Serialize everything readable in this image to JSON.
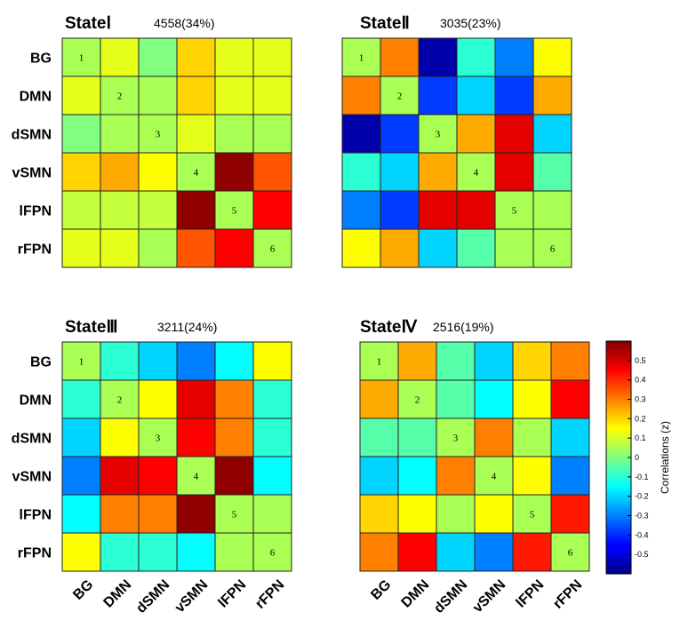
{
  "chart_data": {
    "type": "heatmap",
    "regions": [
      "BG",
      "DMN",
      "dSMN",
      "vSMN",
      "lFPN",
      "rFPN"
    ],
    "diagonal_labels": [
      "1",
      "2",
      "3",
      "4",
      "5",
      "6"
    ],
    "colorbar": {
      "label": "Correlations (z)",
      "min": -0.6,
      "max": 0.6,
      "tick_values": [
        0.5,
        0.4,
        0.3,
        0.2,
        0.1,
        0,
        -0.1,
        -0.2,
        -0.3,
        -0.4,
        -0.5
      ],
      "tick_labels": [
        "0.5",
        "0.4",
        "0.3",
        "0.2",
        "0.1",
        "0",
        "-0.1",
        "-0.2",
        "-0.3",
        "-0.4",
        "-0.5"
      ]
    },
    "states": [
      {
        "title": "StateⅠ",
        "count": "4558(34%)",
        "matrix": [
          [
            0.05,
            0.12,
            0.0,
            0.2,
            0.12,
            0.12
          ],
          [
            0.12,
            0.05,
            0.05,
            0.2,
            0.12,
            0.12
          ],
          [
            0.0,
            0.05,
            0.05,
            0.12,
            0.05,
            0.05
          ],
          [
            0.2,
            0.25,
            0.15,
            0.05,
            0.58,
            0.35
          ],
          [
            0.08,
            0.08,
            0.08,
            0.58,
            0.05,
            0.45
          ],
          [
            0.12,
            0.12,
            0.05,
            0.35,
            0.45,
            0.05
          ]
        ]
      },
      {
        "title": "StateⅡ",
        "count": "3035(23%)",
        "matrix": [
          [
            0.05,
            0.3,
            -0.55,
            -0.1,
            -0.3,
            0.15
          ],
          [
            0.3,
            0.05,
            -0.38,
            -0.2,
            -0.38,
            0.25
          ],
          [
            -0.55,
            -0.38,
            0.05,
            0.25,
            0.48,
            -0.2
          ],
          [
            -0.1,
            -0.2,
            0.25,
            0.05,
            0.48,
            -0.05
          ],
          [
            -0.3,
            -0.38,
            0.48,
            0.48,
            0.05,
            0.05
          ],
          [
            0.15,
            0.25,
            -0.2,
            -0.05,
            0.05,
            0.05
          ]
        ]
      },
      {
        "title": "StateⅢ",
        "count": "3211(24%)",
        "matrix": [
          [
            0.05,
            -0.1,
            -0.2,
            -0.3,
            -0.15,
            0.15
          ],
          [
            -0.1,
            0.05,
            0.15,
            0.48,
            0.3,
            -0.1
          ],
          [
            -0.2,
            0.15,
            0.05,
            0.45,
            0.3,
            -0.1
          ],
          [
            -0.3,
            0.48,
            0.45,
            0.05,
            0.58,
            -0.15
          ],
          [
            -0.15,
            0.3,
            0.3,
            0.58,
            0.05,
            0.05
          ],
          [
            0.15,
            -0.1,
            -0.1,
            -0.15,
            0.05,
            0.05
          ]
        ]
      },
      {
        "title": "StateⅣ",
        "count": "2516(19%)",
        "matrix": [
          [
            0.05,
            0.25,
            -0.05,
            -0.2,
            0.2,
            0.3
          ],
          [
            0.25,
            0.05,
            -0.05,
            -0.15,
            0.15,
            0.45
          ],
          [
            -0.05,
            -0.05,
            0.05,
            0.3,
            0.05,
            -0.2
          ],
          [
            -0.2,
            -0.15,
            0.3,
            0.05,
            0.15,
            -0.3
          ],
          [
            0.2,
            0.15,
            0.05,
            0.15,
            0.05,
            0.42
          ],
          [
            0.3,
            0.45,
            -0.2,
            -0.3,
            0.42,
            0.05
          ]
        ]
      }
    ]
  }
}
